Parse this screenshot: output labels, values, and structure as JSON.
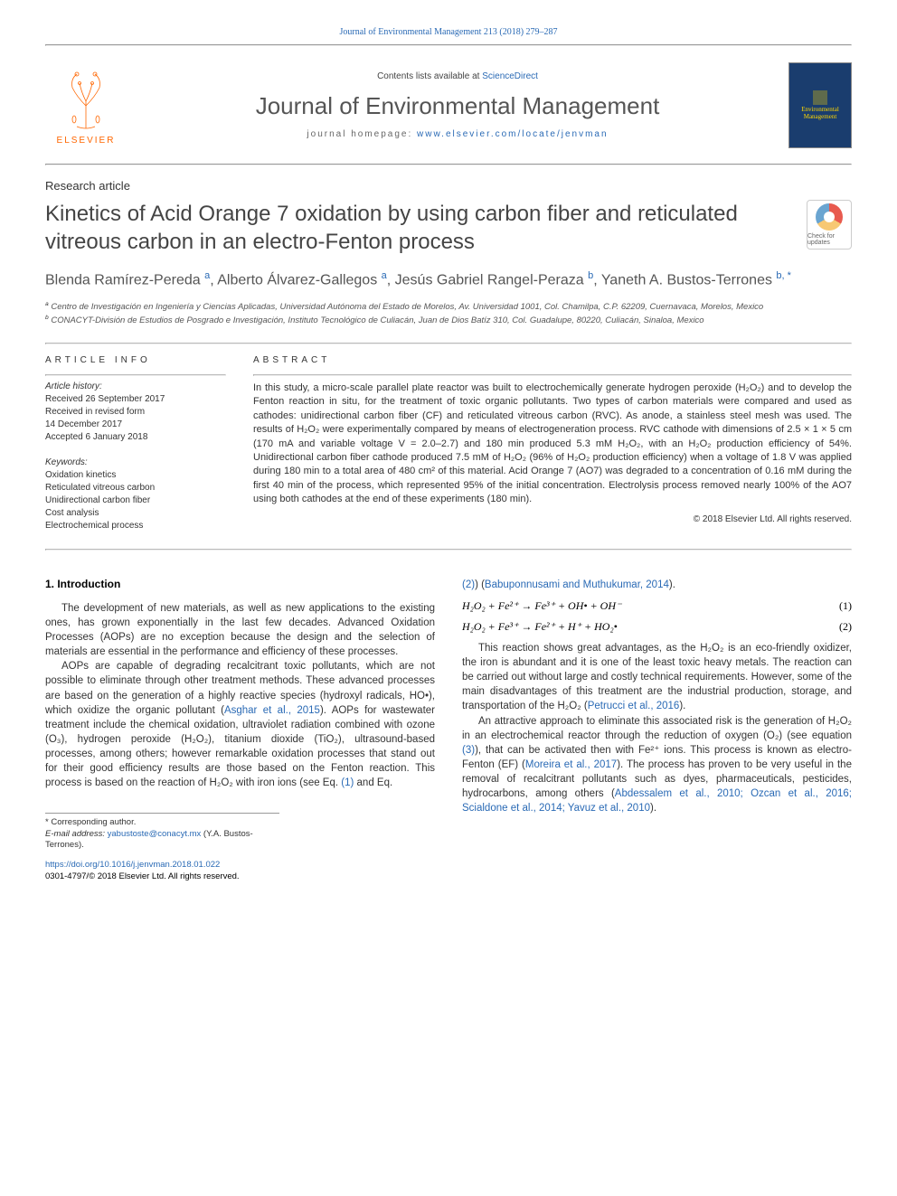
{
  "colors": {
    "link": "#2a6ab5",
    "text": "#333333",
    "title": "#444444",
    "elsevier_orange": "#ff6600",
    "cover_bg": "#1a3d6e",
    "cover_text": "#ffd700",
    "divider": "#999999"
  },
  "typography": {
    "body_font": "Arial, sans-serif",
    "serif_font": "Georgia, serif",
    "journal_title_size": 26,
    "article_title_size": 24,
    "authors_size": 16,
    "body_size": 11.5,
    "abstract_size": 11,
    "small_size": 10
  },
  "header": {
    "top_citation": "Journal of Environmental Management 213 (2018) 279–287",
    "contents_prefix": "Contents lists available at ",
    "contents_link": "ScienceDirect",
    "journal_title": "Journal of Environmental Management",
    "homepage_prefix": "journal homepage: ",
    "homepage_link": "www.elsevier.com/locate/jenvman",
    "publisher_name": "ELSEVIER",
    "cover_text": "Environmental Management"
  },
  "article": {
    "type": "Research article",
    "title": "Kinetics of Acid Orange 7 oxidation by using carbon fiber and reticulated vitreous carbon in an electro-Fenton process",
    "updates_badge_label": "Check for updates",
    "authors_html": "Blenda Ramírez-Pereda <sup>a</sup>, Alberto Álvarez-Gallegos <sup>a</sup>, Jesús Gabriel Rangel-Peraza <sup>b</sup>, Yaneth A. Bustos-Terrones <sup>b, *</sup>",
    "affiliations": [
      {
        "marker": "a",
        "text": "Centro de Investigación en Ingeniería y Ciencias Aplicadas, Universidad Autónoma del Estado de Morelos, Av. Universidad 1001, Col. Chamilpa, C.P. 62209, Cuernavaca, Morelos, Mexico"
      },
      {
        "marker": "b",
        "text": "CONACYT-División de Estudios de Posgrado e Investigación, Instituto Tecnológico de Culiacán, Juan de Dios Batíz 310, Col. Guadalupe, 80220, Culiacán, Sinaloa, Mexico"
      }
    ]
  },
  "article_info": {
    "label": "ARTICLE INFO",
    "history_label": "Article history:",
    "history": [
      "Received 26 September 2017",
      "Received in revised form",
      "14 December 2017",
      "Accepted 6 January 2018"
    ],
    "keywords_label": "Keywords:",
    "keywords": [
      "Oxidation kinetics",
      "Reticulated vitreous carbon",
      "Unidirectional carbon fiber",
      "Cost analysis",
      "Electrochemical process"
    ]
  },
  "abstract": {
    "label": "ABSTRACT",
    "text": "In this study, a micro-scale parallel plate reactor was built to electrochemically generate hydrogen peroxide (H₂O₂) and to develop the Fenton reaction in situ, for the treatment of toxic organic pollutants. Two types of carbon materials were compared and used as cathodes: unidirectional carbon fiber (CF) and reticulated vitreous carbon (RVC). As anode, a stainless steel mesh was used. The results of H₂O₂ were experimentally compared by means of electrogeneration process. RVC cathode with dimensions of 2.5 × 1 × 5 cm (170 mA and variable voltage V = 2.0–2.7) and 180 min produced 5.3 mM H₂O₂, with an H₂O₂ production efficiency of 54%. Unidirectional carbon fiber cathode produced 7.5 mM of H₂O₂ (96% of H₂O₂ production efficiency) when a voltage of 1.8 V was applied during 180 min to a total area of 480 cm² of this material. Acid Orange 7 (AO7) was degraded to a concentration of 0.16 mM during the first 40 min of the process, which represented 95% of the initial concentration. Electrolysis process removed nearly 100% of the AO7 using both cathodes at the end of these experiments (180 min).",
    "copyright": "© 2018 Elsevier Ltd. All rights reserved."
  },
  "body": {
    "section_heading": "1. Introduction",
    "col1_paragraphs": [
      "The development of new materials, as well as new applications to the existing ones, has grown exponentially in the last few decades. Advanced Oxidation Processes (AOPs) are no exception because the design and the selection of materials are essential in the performance and efficiency of these processes.",
      "AOPs are capable of degrading recalcitrant toxic pollutants, which are not possible to eliminate through other treatment methods. These advanced processes are based on the generation of a highly reactive species (hydroxyl radicals, HO•), which oxidize the organic pollutant (<a class='ref-link'>Asghar et al., 2015</a>). AOPs for wastewater treatment include the chemical oxidation, ultraviolet radiation combined with ozone (O₃), hydrogen peroxide (H₂O₂), titanium dioxide (TiO₂), ultrasound-based processes, among others; however remarkable oxidation processes that stand out for their good efficiency results are those based on the Fenton reaction. This process is based on the reaction of H₂O₂ with iron ions (see Eq. <a class='ref-link'>(1)</a> and Eq."
    ],
    "col2_top_frag": "<a class='ref-link'>(2)</a>) (<a class='ref-link'>Babuponnusami and Muthukumar, 2014</a>).",
    "equations": [
      {
        "lhs": "H₂O₂ + Fe²⁺ → Fe³⁺ + OH• + OH⁻",
        "num": "(1)"
      },
      {
        "lhs": "H₂O₂ + Fe³⁺ → Fe²⁺ + H⁺ + HO₂•",
        "num": "(2)"
      }
    ],
    "col2_paragraphs": [
      "This reaction shows great advantages, as the H₂O₂ is an eco-friendly oxidizer, the iron is abundant and it is one of the least toxic heavy metals. The reaction can be carried out without large and costly technical requirements. However, some of the main disadvantages of this treatment are the industrial production, storage, and transportation of the H₂O₂ (<a class='ref-link'>Petrucci et al., 2016</a>).",
      "An attractive approach to eliminate this associated risk is the generation of H₂O₂ in an electrochemical reactor through the reduction of oxygen (O₂) (see equation <a class='ref-link'>(3)</a>), that can be activated then with Fe²⁺ ions. This process is known as electro-Fenton (EF) (<a class='ref-link'>Moreira et al., 2017</a>). The process has proven to be very useful in the removal of recalcitrant pollutants such as dyes, pharmaceuticals, pesticides, hydrocarbons, among others (<a class='ref-link'>Abdessalem et al., 2010; Ozcan et al., 2016; Scialdone et al., 2014; Yavuz et al., 2010</a>)."
    ]
  },
  "footnote": {
    "corresponding": "* Corresponding author.",
    "email_label": "E-mail address: ",
    "email": "yabustoste@conacyt.mx",
    "email_suffix": " (Y.A. Bustos-Terrones)."
  },
  "footer": {
    "doi": "https://doi.org/10.1016/j.jenvman.2018.01.022",
    "issn_line": "0301-4797/© 2018 Elsevier Ltd. All rights reserved."
  }
}
